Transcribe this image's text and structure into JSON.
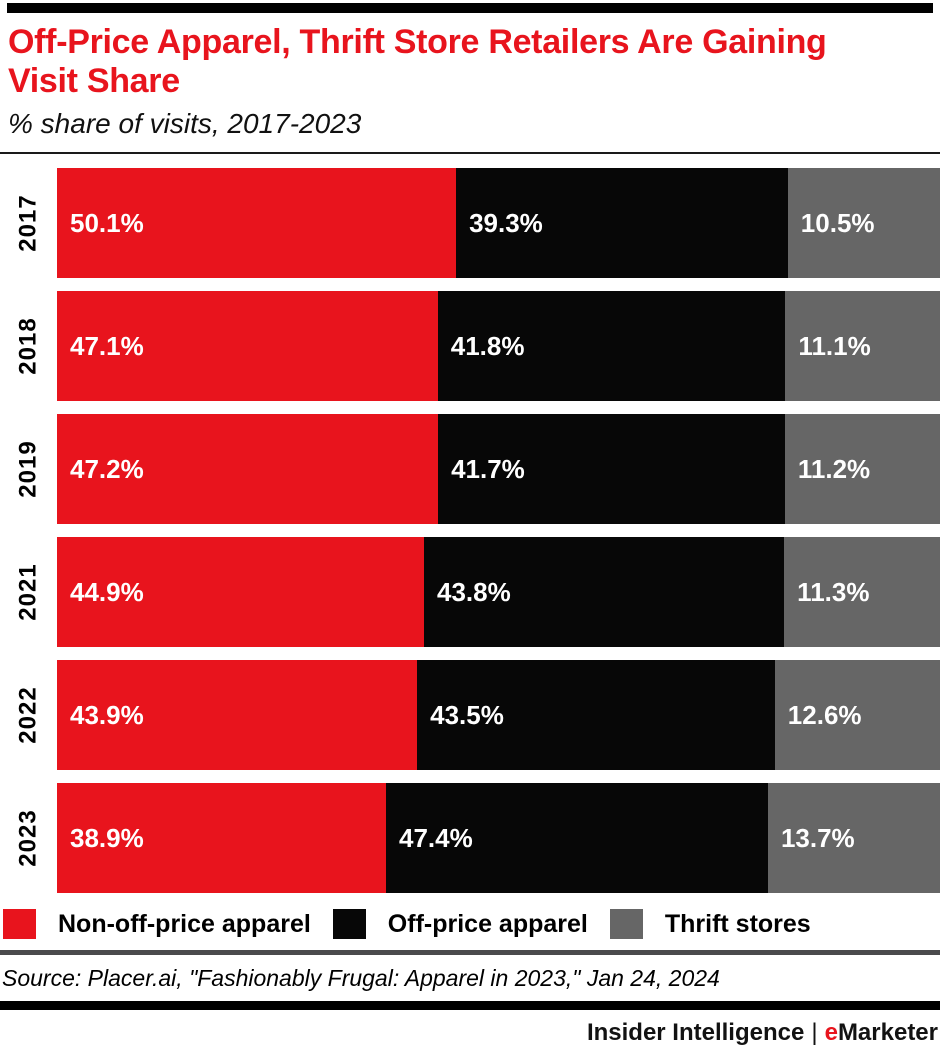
{
  "page": {
    "title_lines": [
      "Off-Price Apparel, Thrift Store Retailers Are Gaining",
      "Visit Share"
    ],
    "subtitle": "% share of visits, 2017-2023",
    "source": "Source: Placer.ai, \"Fashionably Frugal: Apparel in 2023,\" Jan 24, 2024",
    "footer": {
      "brand_left": "Insider Intelligence",
      "separator": "|",
      "brand_right_accent": "e",
      "brand_right_rest": "Marketer"
    }
  },
  "colors": {
    "accent_red": "#e8141d",
    "bar_black": "#070707",
    "bar_gray": "#666666",
    "divider_dark_gray": "#4a4a4c"
  },
  "chart_data": {
    "type": "bar",
    "orientation": "horizontal-stacked",
    "title": "Off-Price Apparel, Thrift Store Retailers Are Gaining Visit Share",
    "subtitle": "% share of visits, 2017-2023",
    "categories": [
      "2017",
      "2018",
      "2019",
      "2021",
      "2022",
      "2023"
    ],
    "series": [
      {
        "name": "Non-off-price apparel",
        "color": "#e8141d",
        "values": [
          50.1,
          47.1,
          47.2,
          44.9,
          43.9,
          38.9
        ]
      },
      {
        "name": "Off-price apparel",
        "color": "#070707",
        "values": [
          39.3,
          41.8,
          41.7,
          43.8,
          43.5,
          47.4
        ]
      },
      {
        "name": "Thrift stores",
        "color": "#666666",
        "values": [
          10.5,
          11.1,
          11.2,
          11.3,
          12.6,
          13.7
        ]
      }
    ],
    "value_suffix": "%",
    "xlabel": "",
    "ylabel": "",
    "xlim": [
      0,
      100
    ],
    "grid": false,
    "legend_position": "bottom",
    "data_labels": true
  }
}
